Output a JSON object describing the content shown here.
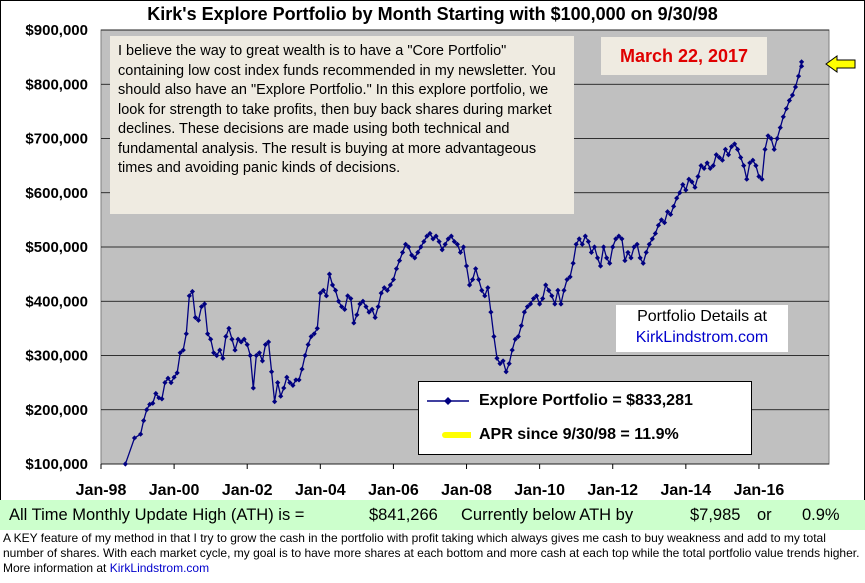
{
  "chart_data": {
    "type": "line",
    "title": "Kirk's Explore Portfolio by Month Starting with $100,000 on 9/30/98",
    "x_ticks": [
      "Jan-98",
      "Jan-00",
      "Jan-02",
      "Jan-04",
      "Jan-06",
      "Jan-08",
      "Jan-10",
      "Jan-12",
      "Jan-14",
      "Jan-16"
    ],
    "y_ticks": [
      "$100,000",
      "$200,000",
      "$300,000",
      "$400,000",
      "$500,000",
      "$600,000",
      "$700,000",
      "$800,000",
      "$900,000"
    ],
    "ylim": [
      100000,
      900000
    ],
    "xlim": [
      "1998-01",
      "2017-12"
    ],
    "grid": "horizontal",
    "series": [
      {
        "name": "Explore Portfolio",
        "color": "#000080",
        "marker": "diamond",
        "points": [
          [
            "1998-09",
            100000
          ],
          [
            "1998-12",
            148000
          ],
          [
            "1999-02",
            155000
          ],
          [
            "1999-03",
            180000
          ],
          [
            "1999-04",
            200000
          ],
          [
            "1999-05",
            210000
          ],
          [
            "1999-06",
            212000
          ],
          [
            "1999-07",
            230000
          ],
          [
            "1999-08",
            222000
          ],
          [
            "1999-09",
            220000
          ],
          [
            "1999-10",
            250000
          ],
          [
            "1999-11",
            258000
          ],
          [
            "1999-12",
            250000
          ],
          [
            "2000-01",
            260000
          ],
          [
            "2000-02",
            268000
          ],
          [
            "2000-03",
            305000
          ],
          [
            "2000-04",
            310000
          ],
          [
            "2000-05",
            340000
          ],
          [
            "2000-06",
            410000
          ],
          [
            "2000-07",
            418000
          ],
          [
            "2000-08",
            370000
          ],
          [
            "2000-09",
            365000
          ],
          [
            "2000-10",
            390000
          ],
          [
            "2000-11",
            395000
          ],
          [
            "2000-12",
            340000
          ],
          [
            "2001-01",
            330000
          ],
          [
            "2001-02",
            305000
          ],
          [
            "2001-03",
            300000
          ],
          [
            "2001-04",
            310000
          ],
          [
            "2001-05",
            295000
          ],
          [
            "2001-06",
            335000
          ],
          [
            "2001-07",
            350000
          ],
          [
            "2001-08",
            330000
          ],
          [
            "2001-09",
            310000
          ],
          [
            "2001-10",
            330000
          ],
          [
            "2001-11",
            325000
          ],
          [
            "2001-12",
            330000
          ],
          [
            "2002-01",
            320000
          ],
          [
            "2002-02",
            300000
          ],
          [
            "2002-03",
            240000
          ],
          [
            "2002-04",
            300000
          ],
          [
            "2002-05",
            305000
          ],
          [
            "2002-06",
            290000
          ],
          [
            "2002-07",
            320000
          ],
          [
            "2002-08",
            325000
          ],
          [
            "2002-09",
            270000
          ],
          [
            "2002-10",
            215000
          ],
          [
            "2002-11",
            250000
          ],
          [
            "2002-12",
            225000
          ],
          [
            "2003-01",
            240000
          ],
          [
            "2003-02",
            260000
          ],
          [
            "2003-03",
            250000
          ],
          [
            "2003-04",
            245000
          ],
          [
            "2003-05",
            255000
          ],
          [
            "2003-06",
            255000
          ],
          [
            "2003-07",
            275000
          ],
          [
            "2003-08",
            300000
          ],
          [
            "2003-09",
            320000
          ],
          [
            "2003-10",
            335000
          ],
          [
            "2003-11",
            340000
          ],
          [
            "2003-12",
            350000
          ],
          [
            "2004-01",
            415000
          ],
          [
            "2004-02",
            420000
          ],
          [
            "2004-03",
            410000
          ],
          [
            "2004-04",
            450000
          ],
          [
            "2004-05",
            430000
          ],
          [
            "2004-06",
            420000
          ],
          [
            "2004-07",
            400000
          ],
          [
            "2004-08",
            390000
          ],
          [
            "2004-09",
            385000
          ],
          [
            "2004-10",
            410000
          ],
          [
            "2004-11",
            405000
          ],
          [
            "2004-12",
            360000
          ],
          [
            "2005-01",
            375000
          ],
          [
            "2005-02",
            395000
          ],
          [
            "2005-03",
            400000
          ],
          [
            "2005-04",
            390000
          ],
          [
            "2005-05",
            380000
          ],
          [
            "2005-06",
            385000
          ],
          [
            "2005-07",
            370000
          ],
          [
            "2005-08",
            390000
          ],
          [
            "2005-09",
            415000
          ],
          [
            "2005-10",
            425000
          ],
          [
            "2005-11",
            420000
          ],
          [
            "2005-12",
            430000
          ],
          [
            "2006-01",
            440000
          ],
          [
            "2006-02",
            460000
          ],
          [
            "2006-03",
            475000
          ],
          [
            "2006-04",
            490000
          ],
          [
            "2006-05",
            505000
          ],
          [
            "2006-06",
            500000
          ],
          [
            "2006-07",
            485000
          ],
          [
            "2006-08",
            480000
          ],
          [
            "2006-09",
            490000
          ],
          [
            "2006-10",
            500000
          ],
          [
            "2006-11",
            510000
          ],
          [
            "2006-12",
            520000
          ],
          [
            "2007-01",
            525000
          ],
          [
            "2007-02",
            515000
          ],
          [
            "2007-03",
            520000
          ],
          [
            "2007-04",
            510000
          ],
          [
            "2007-05",
            495000
          ],
          [
            "2007-06",
            505000
          ],
          [
            "2007-07",
            515000
          ],
          [
            "2007-08",
            520000
          ],
          [
            "2007-09",
            510000
          ],
          [
            "2007-10",
            505000
          ],
          [
            "2007-11",
            490000
          ],
          [
            "2007-12",
            500000
          ],
          [
            "2008-01",
            465000
          ],
          [
            "2008-02",
            430000
          ],
          [
            "2008-03",
            440000
          ],
          [
            "2008-04",
            460000
          ],
          [
            "2008-05",
            440000
          ],
          [
            "2008-06",
            420000
          ],
          [
            "2008-07",
            410000
          ],
          [
            "2008-08",
            425000
          ],
          [
            "2008-09",
            380000
          ],
          [
            "2008-10",
            335000
          ],
          [
            "2008-11",
            295000
          ],
          [
            "2008-12",
            285000
          ],
          [
            "2009-01",
            290000
          ],
          [
            "2009-02",
            270000
          ],
          [
            "2009-03",
            285000
          ],
          [
            "2009-04",
            310000
          ],
          [
            "2009-05",
            330000
          ],
          [
            "2009-06",
            335000
          ],
          [
            "2009-07",
            355000
          ],
          [
            "2009-08",
            380000
          ],
          [
            "2009-09",
            390000
          ],
          [
            "2009-10",
            395000
          ],
          [
            "2009-11",
            405000
          ],
          [
            "2009-12",
            410000
          ],
          [
            "2010-01",
            395000
          ],
          [
            "2010-02",
            405000
          ],
          [
            "2010-03",
            430000
          ],
          [
            "2010-04",
            420000
          ],
          [
            "2010-05",
            410000
          ],
          [
            "2010-06",
            395000
          ],
          [
            "2010-07",
            420000
          ],
          [
            "2010-08",
            395000
          ],
          [
            "2010-09",
            420000
          ],
          [
            "2010-10",
            440000
          ],
          [
            "2010-11",
            445000
          ],
          [
            "2010-12",
            470000
          ],
          [
            "2011-01",
            505000
          ],
          [
            "2011-02",
            515000
          ],
          [
            "2011-03",
            505000
          ],
          [
            "2011-04",
            520000
          ],
          [
            "2011-05",
            510000
          ],
          [
            "2011-06",
            490000
          ],
          [
            "2011-07",
            500000
          ],
          [
            "2011-08",
            480000
          ],
          [
            "2011-09",
            465000
          ],
          [
            "2011-10",
            500000
          ],
          [
            "2011-11",
            480000
          ],
          [
            "2011-12",
            470000
          ],
          [
            "2012-01",
            500000
          ],
          [
            "2012-02",
            515000
          ],
          [
            "2012-03",
            520000
          ],
          [
            "2012-04",
            515000
          ],
          [
            "2012-05",
            475000
          ],
          [
            "2012-06",
            490000
          ],
          [
            "2012-07",
            480000
          ],
          [
            "2012-08",
            500000
          ],
          [
            "2012-09",
            505000
          ],
          [
            "2012-10",
            480000
          ],
          [
            "2012-11",
            470000
          ],
          [
            "2012-12",
            490000
          ],
          [
            "2013-01",
            505000
          ],
          [
            "2013-02",
            515000
          ],
          [
            "2013-03",
            525000
          ],
          [
            "2013-04",
            540000
          ],
          [
            "2013-05",
            550000
          ],
          [
            "2013-06",
            545000
          ],
          [
            "2013-07",
            565000
          ],
          [
            "2013-08",
            560000
          ],
          [
            "2013-09",
            575000
          ],
          [
            "2013-10",
            590000
          ],
          [
            "2013-11",
            600000
          ],
          [
            "2013-12",
            615000
          ],
          [
            "2014-01",
            605000
          ],
          [
            "2014-02",
            625000
          ],
          [
            "2014-03",
            620000
          ],
          [
            "2014-04",
            610000
          ],
          [
            "2014-05",
            630000
          ],
          [
            "2014-06",
            650000
          ],
          [
            "2014-07",
            645000
          ],
          [
            "2014-08",
            655000
          ],
          [
            "2014-09",
            645000
          ],
          [
            "2014-10",
            650000
          ],
          [
            "2014-11",
            670000
          ],
          [
            "2014-12",
            665000
          ],
          [
            "2015-01",
            660000
          ],
          [
            "2015-02",
            680000
          ],
          [
            "2015-03",
            670000
          ],
          [
            "2015-04",
            685000
          ],
          [
            "2015-05",
            690000
          ],
          [
            "2015-06",
            680000
          ],
          [
            "2015-07",
            665000
          ],
          [
            "2015-08",
            650000
          ],
          [
            "2015-09",
            625000
          ],
          [
            "2015-10",
            655000
          ],
          [
            "2015-11",
            660000
          ],
          [
            "2015-12",
            650000
          ],
          [
            "2016-01",
            630000
          ],
          [
            "2016-02",
            625000
          ],
          [
            "2016-03",
            680000
          ],
          [
            "2016-04",
            705000
          ],
          [
            "2016-05",
            700000
          ],
          [
            "2016-06",
            680000
          ],
          [
            "2016-07",
            700000
          ],
          [
            "2016-08",
            720000
          ],
          [
            "2016-09",
            740000
          ],
          [
            "2016-10",
            755000
          ],
          [
            "2016-11",
            770000
          ],
          [
            "2016-12",
            780000
          ],
          [
            "2017-01",
            795000
          ],
          [
            "2017-02",
            815000
          ],
          [
            "2017-03",
            841266
          ],
          [
            "2017-03",
            833281
          ]
        ]
      }
    ]
  },
  "annotation_text": "I believe the way to great wealth is to have a \"Core Portfolio\" containing low cost index funds recommended in my newsletter.  You  should also have an \"Explore Portfolio.\" In this  explore portfolio, we look for strength to take profits, then buy back shares during market declines. These decisions are made using both technical and fundamental analysis. The result is buying at more advantageous times and avoiding panic kinds of decisions.",
  "date_label": "March 22, 2017",
  "details": {
    "line1": "Portfolio Details at",
    "link": "KirkLindstrom.com"
  },
  "legend": {
    "series_label": "Explore Portfolio  =  $833,281",
    "apr_label": "APR since 9/30/98 =  11.9%",
    "series_color": "#000080",
    "apr_color": "#ffff00"
  },
  "footer_stats": {
    "ath_label": "All Time Monthly Update High (ATH) is =",
    "ath_value": "$841,266",
    "below_label": "Currently below ATH by",
    "below_value": "$7,985",
    "or_label": "or",
    "below_pct": "0.9%",
    "background": "#ccffcc"
  },
  "footer_note": {
    "text": "A KEY feature of my method in that I try to grow the cash in the portfolio with profit taking which always gives me cash to buy weakness and add to my total number of shares.  With each market cycle, my goal is to have more shares at each bottom and more cash at each top while the total portfolio value trends higher.         More information at",
    "link": "KirkLindstrom.com"
  },
  "colors": {
    "plot_area": "#c0c0c0",
    "note_box": "#efebe1",
    "date_text": "#e00000",
    "arrow": "#ffff00"
  }
}
